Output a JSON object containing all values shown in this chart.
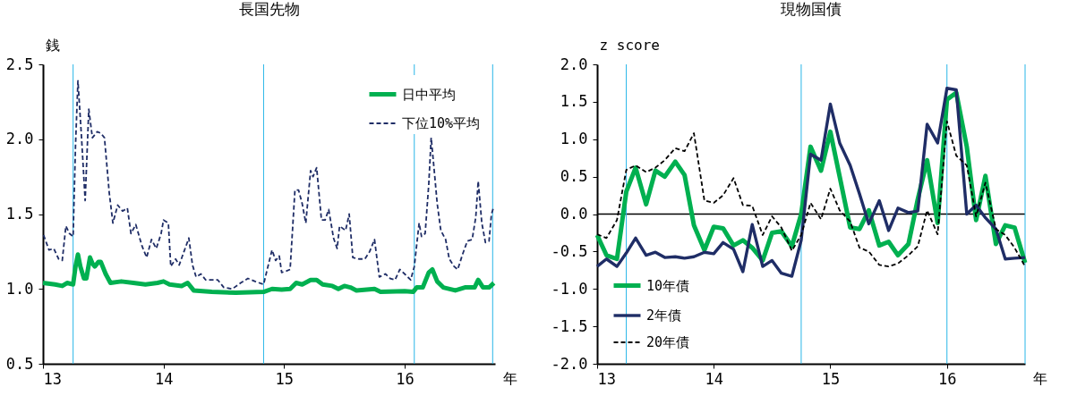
{
  "chart_data": [
    {
      "type": "line",
      "title": "長国先物",
      "ylabel": "銭",
      "xlabel": "年",
      "xlim": [
        13,
        16.75
      ],
      "xticks": [
        13,
        14,
        15,
        16
      ],
      "ylim": [
        0.5,
        2.5
      ],
      "yticks": [
        {
          "value": 0.5,
          "label": "0.5"
        },
        {
          "value": 1,
          "label": "1.0"
        },
        {
          "value": 1.5,
          "label": "1.5"
        },
        {
          "value": 2,
          "label": "2.0"
        },
        {
          "value": 2.5,
          "label": "2.5"
        }
      ],
      "legend": "top right",
      "grid": false,
      "marker": "none",
      "ref_lines": [
        {
          "axis": "x",
          "value": 13.25,
          "color": "#29b6e8"
        },
        {
          "axis": "x",
          "value": 14.83,
          "color": "#29b6e8"
        },
        {
          "axis": "x",
          "value": 16.08,
          "color": "#29b6e8"
        },
        {
          "axis": "x",
          "value": 16.73,
          "color": "#29b6e8"
        }
      ],
      "series": [
        {
          "name": "日中平均",
          "color": "#00b050",
          "line_style": "solid",
          "x": [
            13.0,
            13.1,
            13.16,
            13.2,
            13.25,
            13.27,
            13.29,
            13.31,
            13.34,
            13.36,
            13.39,
            13.41,
            13.43,
            13.46,
            13.48,
            13.52,
            13.56,
            13.65,
            13.75,
            13.85,
            13.95,
            14.0,
            14.05,
            14.15,
            14.2,
            14.25,
            14.4,
            14.6,
            14.83,
            14.9,
            14.98,
            15.05,
            15.1,
            15.15,
            15.22,
            15.27,
            15.32,
            15.4,
            15.45,
            15.5,
            15.55,
            15.6,
            15.75,
            15.8,
            16.0,
            16.07,
            16.1,
            16.15,
            16.2,
            16.23,
            16.27,
            16.32,
            16.42,
            16.5,
            16.58,
            16.61,
            16.65,
            16.7,
            16.74
          ],
          "values": [
            1.04,
            1.03,
            1.02,
            1.04,
            1.03,
            1.15,
            1.23,
            1.15,
            1.07,
            1.07,
            1.21,
            1.17,
            1.15,
            1.18,
            1.18,
            1.1,
            1.04,
            1.05,
            1.04,
            1.03,
            1.04,
            1.05,
            1.03,
            1.02,
            1.04,
            0.99,
            0.98,
            0.975,
            0.98,
            1.0,
            0.995,
            1.0,
            1.04,
            1.03,
            1.06,
            1.06,
            1.03,
            1.02,
            1.0,
            1.02,
            1.01,
            0.99,
            1.0,
            0.98,
            0.985,
            0.98,
            1.01,
            1.01,
            1.11,
            1.13,
            1.05,
            1.01,
            0.99,
            1.01,
            1.01,
            1.06,
            1.01,
            1.01,
            1.04
          ]
        },
        {
          "name": "下位10%平均",
          "color": "#1f2d66",
          "line_style": "dashed",
          "x": [
            13.005,
            13.05,
            13.09,
            13.13,
            13.16,
            13.19,
            13.22,
            13.25,
            13.27,
            13.29,
            13.32,
            13.35,
            13.38,
            13.41,
            13.45,
            13.48,
            13.51,
            13.55,
            13.58,
            13.62,
            13.66,
            13.7,
            13.73,
            13.77,
            13.82,
            13.86,
            13.9,
            13.94,
            13.98,
            14.0,
            14.04,
            14.06,
            14.1,
            14.13,
            14.17,
            14.21,
            14.24,
            14.27,
            14.31,
            14.35,
            14.39,
            14.45,
            14.5,
            14.57,
            14.64,
            14.7,
            14.76,
            14.83,
            14.86,
            14.9,
            14.93,
            14.96,
            14.98,
            15.02,
            15.05,
            15.09,
            15.12,
            15.15,
            15.18,
            15.22,
            15.24,
            15.27,
            15.31,
            15.34,
            15.37,
            15.41,
            15.44,
            15.46,
            15.51,
            15.54,
            15.57,
            15.62,
            15.67,
            15.71,
            15.75,
            15.79,
            15.84,
            15.88,
            15.92,
            15.96,
            16.0,
            16.05,
            16.08,
            16.12,
            16.14,
            16.17,
            16.2,
            16.22,
            16.25,
            16.27,
            16.3,
            16.34,
            16.37,
            16.41,
            16.44,
            16.48,
            16.52,
            16.56,
            16.59,
            16.61,
            16.64,
            16.67,
            16.7,
            16.72,
            16.74
          ],
          "values": [
            1.36,
            1.26,
            1.27,
            1.2,
            1.19,
            1.42,
            1.37,
            1.35,
            1.96,
            2.39,
            2.01,
            1.59,
            2.2,
            2.01,
            2.05,
            2.04,
            2.01,
            1.64,
            1.44,
            1.56,
            1.52,
            1.54,
            1.37,
            1.43,
            1.29,
            1.21,
            1.33,
            1.27,
            1.37,
            1.46,
            1.44,
            1.15,
            1.2,
            1.16,
            1.25,
            1.34,
            1.16,
            1.08,
            1.1,
            1.06,
            1.06,
            1.06,
            1.01,
            1.0,
            1.04,
            1.07,
            1.05,
            1.03,
            1.13,
            1.26,
            1.19,
            1.22,
            1.11,
            1.12,
            1.13,
            1.66,
            1.66,
            1.57,
            1.44,
            1.79,
            1.75,
            1.81,
            1.46,
            1.46,
            1.53,
            1.34,
            1.27,
            1.42,
            1.39,
            1.5,
            1.21,
            1.2,
            1.2,
            1.25,
            1.33,
            1.08,
            1.1,
            1.07,
            1.06,
            1.13,
            1.1,
            1.06,
            1.15,
            1.44,
            1.35,
            1.37,
            1.7,
            2.01,
            1.75,
            1.57,
            1.39,
            1.33,
            1.2,
            1.15,
            1.13,
            1.23,
            1.32,
            1.33,
            1.48,
            1.72,
            1.44,
            1.31,
            1.32,
            1.5,
            1.55
          ]
        }
      ]
    },
    {
      "type": "line",
      "title": "現物国債",
      "ylabel": "z score",
      "xlabel": "年",
      "xlim": [
        13,
        16.67
      ],
      "xticks": [
        13,
        14,
        15,
        16
      ],
      "ylim": [
        -2,
        2
      ],
      "yticks": [
        {
          "value": -2,
          "label": "-2.0"
        },
        {
          "value": -1.5,
          "label": "-1.5"
        },
        {
          "value": -1,
          "label": "-1.0"
        },
        {
          "value": -0.5,
          "label": "-0.5"
        },
        {
          "value": 0,
          "label": "0.0"
        },
        {
          "value": 0.5,
          "label": "0.5"
        },
        {
          "value": 1,
          "label": "1.0"
        },
        {
          "value": 1.5,
          "label": "1.5"
        },
        {
          "value": 2,
          "label": "2.0"
        }
      ],
      "legend": "bottom left",
      "grid": false,
      "marker": "none",
      "x": [
        13.0,
        13.08,
        13.17,
        13.25,
        13.33,
        13.42,
        13.5,
        13.58,
        13.67,
        13.75,
        13.83,
        13.92,
        14.0,
        14.08,
        14.17,
        14.25,
        14.33,
        14.42,
        14.5,
        14.58,
        14.67,
        14.75,
        14.83,
        14.92,
        15.0,
        15.08,
        15.17,
        15.25,
        15.33,
        15.42,
        15.5,
        15.58,
        15.67,
        15.75,
        15.83,
        15.92,
        16.0,
        16.08,
        16.17,
        16.25,
        16.33,
        16.42,
        16.5,
        16.58,
        16.67
      ],
      "ref_lines": [
        {
          "axis": "x",
          "value": 13.25,
          "color": "#29b6e8"
        },
        {
          "axis": "x",
          "value": 14.75,
          "color": "#29b6e8"
        },
        {
          "axis": "x",
          "value": 16.0,
          "color": "#29b6e8"
        },
        {
          "axis": "x",
          "value": 16.67,
          "color": "#29b6e8"
        },
        {
          "axis": "y",
          "value": 0,
          "color": "#000000"
        }
      ],
      "series": [
        {
          "name": "10年債",
          "color": "#00b050",
          "line_style": "solid",
          "values": [
            -0.28,
            -0.55,
            -0.6,
            0.3,
            0.62,
            0.13,
            0.58,
            0.5,
            0.7,
            0.52,
            -0.15,
            -0.48,
            -0.17,
            -0.19,
            -0.42,
            -0.35,
            -0.45,
            -0.62,
            -0.25,
            -0.23,
            -0.43,
            0.0,
            0.9,
            0.58,
            1.1,
            0.5,
            -0.18,
            -0.2,
            0.05,
            -0.42,
            -0.37,
            -0.55,
            -0.4,
            0.2,
            0.72,
            -0.12,
            1.53,
            1.62,
            0.9,
            -0.08,
            0.51,
            -0.4,
            -0.15,
            -0.18,
            -0.65
          ]
        },
        {
          "name": "2年債",
          "color": "#1f2d66",
          "line_style": "solid",
          "values": [
            -0.7,
            -0.6,
            -0.7,
            -0.52,
            -0.32,
            -0.55,
            -0.51,
            -0.58,
            -0.57,
            -0.59,
            -0.57,
            -0.51,
            -0.53,
            -0.38,
            -0.47,
            -0.77,
            -0.14,
            -0.7,
            -0.62,
            -0.79,
            -0.83,
            -0.35,
            0.8,
            0.72,
            1.47,
            0.95,
            0.65,
            0.27,
            -0.13,
            0.18,
            -0.22,
            0.08,
            0.02,
            0.04,
            1.2,
            0.95,
            1.68,
            1.66,
            0.0,
            0.12,
            -0.05,
            -0.2,
            -0.6,
            -0.59,
            -0.58
          ]
        },
        {
          "name": "20年債",
          "color": "#000000",
          "line_style": "dashed",
          "values": [
            -0.27,
            -0.32,
            -0.08,
            0.59,
            0.65,
            0.56,
            0.62,
            0.72,
            0.88,
            0.84,
            1.08,
            0.18,
            0.15,
            0.25,
            0.48,
            0.12,
            0.11,
            -0.28,
            -0.03,
            -0.18,
            -0.49,
            -0.28,
            0.15,
            -0.07,
            0.34,
            0.05,
            -0.1,
            -0.45,
            -0.5,
            -0.68,
            -0.7,
            -0.66,
            -0.55,
            -0.43,
            0.05,
            -0.27,
            1.24,
            0.78,
            0.65,
            -0.03,
            0.42,
            -0.2,
            -0.28,
            -0.45,
            -0.7
          ]
        }
      ]
    }
  ]
}
